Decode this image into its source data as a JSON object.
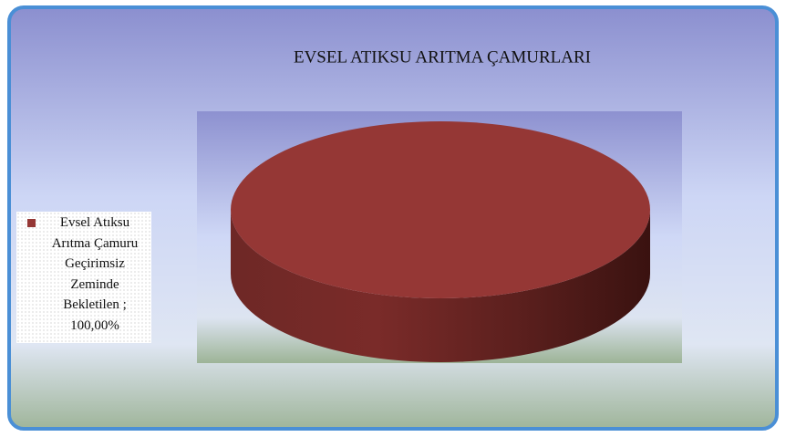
{
  "chart_data": {
    "type": "pie3d",
    "title": "EVSEL ATIKSU ARITMA ÇAMURLARI",
    "categories": [
      "Evsel Atıksu Arıtma Çamuru Geçirimsiz Zeminde Bekletilen"
    ],
    "values": [
      100
    ],
    "value_labels": [
      "100,00%"
    ],
    "label_separator": " ; ",
    "colors": [
      "#953735"
    ],
    "legend": "left"
  }
}
